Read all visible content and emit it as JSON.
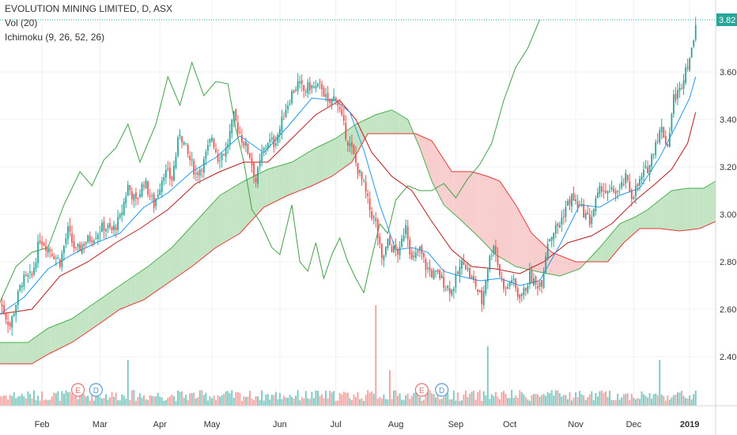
{
  "chart_data": {
    "type": "candlestick",
    "title": "EVOLUTION MINING LIMITED, D, ASX",
    "indicators": [
      "Vol (20)",
      "Ichimoku (9, 26, 52, 26)"
    ],
    "last_price_label": "3.82",
    "last_price": 3.82,
    "y_ticks": [
      "3.60",
      "3.40",
      "3.20",
      "3.00",
      "2.80",
      "2.60",
      "2.40"
    ],
    "ylim": [
      2.2,
      3.84
    ],
    "x_labels": [
      "Feb",
      "Mar",
      "Apr",
      "May",
      "Jun",
      "Jul",
      "Aug",
      "Sep",
      "Oct",
      "Nov",
      "Dec",
      "2019"
    ],
    "x_label_days": [
      21,
      50,
      80,
      106,
      140,
      168,
      198,
      228,
      255,
      288,
      317,
      345
    ],
    "x_range_days": [
      0,
      358
    ],
    "earnings_markers": [
      {
        "label": "E",
        "day": 39
      },
      {
        "label": "D",
        "day": 48
      },
      {
        "label": "E",
        "day": 211
      },
      {
        "label": "D",
        "day": 221
      }
    ],
    "colors": {
      "up": "#26a69a",
      "down": "#ef5350",
      "volume_up": "#80cbc4",
      "volume_down": "#f5a6a4",
      "tenkan": "#2196f3",
      "kijun": "#b71c1c",
      "lagging": "#43a047",
      "leading_a": "#4caf50",
      "leading_b": "#e53935",
      "cloud_up": "#b9dfb9",
      "cloud_down": "#f6c4c4",
      "last_price_bg": "#26a69a",
      "grid": "#eef0f3",
      "axis_text": "#333333"
    },
    "price_path": [
      [
        0,
        2.63
      ],
      [
        5,
        2.53
      ],
      [
        11,
        2.72
      ],
      [
        16,
        2.74
      ],
      [
        20,
        2.9
      ],
      [
        24,
        2.86
      ],
      [
        30,
        2.8
      ],
      [
        34,
        2.93
      ],
      [
        38,
        2.84
      ],
      [
        42,
        2.88
      ],
      [
        47,
        2.91
      ],
      [
        52,
        2.95
      ],
      [
        56,
        2.93
      ],
      [
        60,
        2.98
      ],
      [
        64,
        3.12
      ],
      [
        68,
        3.05
      ],
      [
        72,
        3.14
      ],
      [
        77,
        3.04
      ],
      [
        82,
        3.18
      ],
      [
        86,
        3.15
      ],
      [
        90,
        3.35
      ],
      [
        94,
        3.25
      ],
      [
        98,
        3.17
      ],
      [
        102,
        3.22
      ],
      [
        106,
        3.33
      ],
      [
        109,
        3.24
      ],
      [
        113,
        3.27
      ],
      [
        117,
        3.41
      ],
      [
        121,
        3.32
      ],
      [
        125,
        3.25
      ],
      [
        128,
        3.14
      ],
      [
        131,
        3.25
      ],
      [
        134,
        3.31
      ],
      [
        137,
        3.3
      ],
      [
        140,
        3.36
      ],
      [
        143,
        3.45
      ],
      [
        146,
        3.51
      ],
      [
        149,
        3.55
      ],
      [
        152,
        3.52
      ],
      [
        155,
        3.54
      ],
      [
        158,
        3.53
      ],
      [
        161,
        3.54
      ],
      [
        164,
        3.46
      ],
      [
        168,
        3.5
      ],
      [
        171,
        3.4
      ],
      [
        174,
        3.31
      ],
      [
        176,
        3.27
      ],
      [
        179,
        3.19
      ],
      [
        182,
        3.12
      ],
      [
        185,
        3.02
      ],
      [
        188,
        2.96
      ],
      [
        191,
        2.8
      ],
      [
        194,
        2.88
      ],
      [
        197,
        2.85
      ],
      [
        200,
        2.84
      ],
      [
        203,
        2.97
      ],
      [
        206,
        2.8
      ],
      [
        210,
        2.85
      ],
      [
        213,
        2.78
      ],
      [
        216,
        2.75
      ],
      [
        220,
        2.74
      ],
      [
        223,
        2.7
      ],
      [
        226,
        2.68
      ],
      [
        229,
        2.75
      ],
      [
        232,
        2.81
      ],
      [
        235,
        2.74
      ],
      [
        238,
        2.7
      ],
      [
        241,
        2.63
      ],
      [
        244,
        2.78
      ],
      [
        247,
        2.88
      ],
      [
        250,
        2.75
      ],
      [
        253,
        2.68
      ],
      [
        256,
        2.73
      ],
      [
        259,
        2.66
      ],
      [
        262,
        2.67
      ],
      [
        265,
        2.74
      ],
      [
        268,
        2.7
      ],
      [
        271,
        2.72
      ],
      [
        274,
        2.89
      ],
      [
        277,
        2.93
      ],
      [
        280,
        2.96
      ],
      [
        283,
        3.03
      ],
      [
        286,
        3.07
      ],
      [
        289,
        3.04
      ],
      [
        292,
        3.01
      ],
      [
        295,
        2.97
      ],
      [
        298,
        3.05
      ],
      [
        301,
        3.12
      ],
      [
        304,
        3.08
      ],
      [
        307,
        3.1
      ],
      [
        310,
        3.1
      ],
      [
        313,
        3.15
      ],
      [
        316,
        3.08
      ],
      [
        319,
        3.12
      ],
      [
        322,
        3.17
      ],
      [
        325,
        3.21
      ],
      [
        328,
        3.31
      ],
      [
        331,
        3.36
      ],
      [
        334,
        3.29
      ],
      [
        337,
        3.49
      ],
      [
        340,
        3.52
      ],
      [
        343,
        3.62
      ],
      [
        346,
        3.68
      ],
      [
        348,
        3.82
      ]
    ],
    "tenkan_sen": [
      [
        0,
        2.58
      ],
      [
        12,
        2.65
      ],
      [
        24,
        2.77
      ],
      [
        36,
        2.83
      ],
      [
        48,
        2.88
      ],
      [
        60,
        2.92
      ],
      [
        72,
        3.03
      ],
      [
        84,
        3.09
      ],
      [
        96,
        3.18
      ],
      [
        108,
        3.24
      ],
      [
        120,
        3.33
      ],
      [
        132,
        3.26
      ],
      [
        144,
        3.37
      ],
      [
        156,
        3.49
      ],
      [
        168,
        3.48
      ],
      [
        175,
        3.43
      ],
      [
        182,
        3.27
      ],
      [
        190,
        3.04
      ],
      [
        198,
        2.85
      ],
      [
        206,
        2.86
      ],
      [
        214,
        2.84
      ],
      [
        222,
        2.76
      ],
      [
        230,
        2.74
      ],
      [
        240,
        2.72
      ],
      [
        250,
        2.73
      ],
      [
        260,
        2.7
      ],
      [
        270,
        2.72
      ],
      [
        280,
        2.87
      ],
      [
        290,
        3.04
      ],
      [
        300,
        3.03
      ],
      [
        310,
        3.08
      ],
      [
        320,
        3.11
      ],
      [
        330,
        3.24
      ],
      [
        338,
        3.37
      ],
      [
        345,
        3.49
      ],
      [
        348,
        3.58
      ]
    ],
    "kijun_sen": [
      [
        0,
        2.58
      ],
      [
        16,
        2.6
      ],
      [
        30,
        2.74
      ],
      [
        44,
        2.8
      ],
      [
        58,
        2.88
      ],
      [
        70,
        2.94
      ],
      [
        84,
        3.02
      ],
      [
        98,
        3.13
      ],
      [
        110,
        3.18
      ],
      [
        122,
        3.22
      ],
      [
        134,
        3.22
      ],
      [
        146,
        3.32
      ],
      [
        158,
        3.42
      ],
      [
        170,
        3.48
      ],
      [
        178,
        3.4
      ],
      [
        186,
        3.26
      ],
      [
        196,
        3.16
      ],
      [
        206,
        3.1
      ],
      [
        216,
        2.97
      ],
      [
        226,
        2.85
      ],
      [
        236,
        2.78
      ],
      [
        248,
        2.77
      ],
      [
        260,
        2.75
      ],
      [
        272,
        2.8
      ],
      [
        284,
        2.88
      ],
      [
        296,
        2.91
      ],
      [
        306,
        2.96
      ],
      [
        318,
        3.06
      ],
      [
        328,
        3.13
      ],
      [
        336,
        3.19
      ],
      [
        344,
        3.3
      ],
      [
        348,
        3.43
      ]
    ],
    "chikou_span": [
      [
        0,
        2.63
      ],
      [
        8,
        2.78
      ],
      [
        16,
        2.84
      ],
      [
        24,
        2.86
      ],
      [
        32,
        3.04
      ],
      [
        40,
        3.18
      ],
      [
        46,
        3.12
      ],
      [
        52,
        3.23
      ],
      [
        58,
        3.28
      ],
      [
        64,
        3.38
      ],
      [
        70,
        3.22
      ],
      [
        78,
        3.38
      ],
      [
        84,
        3.58
      ],
      [
        90,
        3.46
      ],
      [
        96,
        3.64
      ],
      [
        102,
        3.5
      ],
      [
        108,
        3.56
      ],
      [
        114,
        3.55
      ],
      [
        118,
        3.36
      ],
      [
        122,
        3.22
      ],
      [
        126,
        3.02
      ],
      [
        130,
        2.97
      ],
      [
        136,
        2.86
      ],
      [
        140,
        2.83
      ],
      [
        146,
        3.04
      ],
      [
        150,
        2.8
      ],
      [
        154,
        2.76
      ],
      [
        158,
        2.88
      ],
      [
        162,
        2.73
      ],
      [
        166,
        2.83
      ],
      [
        170,
        2.9
      ],
      [
        174,
        2.8
      ],
      [
        178,
        2.73
      ],
      [
        182,
        2.67
      ],
      [
        186,
        2.82
      ],
      [
        190,
        2.96
      ],
      [
        194,
        2.92
      ],
      [
        198,
        3.06
      ],
      [
        204,
        3.12
      ],
      [
        210,
        3.1
      ],
      [
        216,
        3.1
      ],
      [
        222,
        3.13
      ],
      [
        228,
        3.07
      ],
      [
        234,
        3.15
      ],
      [
        240,
        3.21
      ],
      [
        246,
        3.3
      ],
      [
        252,
        3.48
      ],
      [
        258,
        3.62
      ],
      [
        264,
        3.7
      ],
      [
        270,
        3.82
      ]
    ],
    "senkou_span_a": [
      [
        0,
        2.46
      ],
      [
        14,
        2.46
      ],
      [
        24,
        2.52
      ],
      [
        36,
        2.56
      ],
      [
        48,
        2.63
      ],
      [
        60,
        2.7
      ],
      [
        74,
        2.78
      ],
      [
        86,
        2.86
      ],
      [
        98,
        2.97
      ],
      [
        110,
        3.08
      ],
      [
        122,
        3.14
      ],
      [
        134,
        3.19
      ],
      [
        146,
        3.22
      ],
      [
        158,
        3.28
      ],
      [
        168,
        3.32
      ],
      [
        178,
        3.38
      ],
      [
        188,
        3.42
      ],
      [
        196,
        3.44
      ],
      [
        204,
        3.4
      ],
      [
        210,
        3.28
      ],
      [
        216,
        3.14
      ],
      [
        222,
        3.04
      ],
      [
        230,
        2.98
      ],
      [
        240,
        2.9
      ],
      [
        248,
        2.83
      ],
      [
        258,
        2.78
      ],
      [
        268,
        2.76
      ],
      [
        280,
        2.74
      ],
      [
        290,
        2.77
      ],
      [
        300,
        2.86
      ],
      [
        310,
        2.96
      ],
      [
        318,
        2.99
      ],
      [
        324,
        3.02
      ],
      [
        330,
        3.06
      ],
      [
        336,
        3.1
      ],
      [
        344,
        3.11
      ],
      [
        352,
        3.11
      ],
      [
        358,
        3.14
      ]
    ],
    "senkou_span_b": [
      [
        0,
        2.37
      ],
      [
        16,
        2.37
      ],
      [
        24,
        2.41
      ],
      [
        36,
        2.46
      ],
      [
        50,
        2.54
      ],
      [
        60,
        2.6
      ],
      [
        72,
        2.64
      ],
      [
        84,
        2.71
      ],
      [
        96,
        2.78
      ],
      [
        108,
        2.86
      ],
      [
        120,
        2.92
      ],
      [
        132,
        3.03
      ],
      [
        144,
        3.08
      ],
      [
        156,
        3.12
      ],
      [
        166,
        3.16
      ],
      [
        176,
        3.22
      ],
      [
        184,
        3.34
      ],
      [
        196,
        3.34
      ],
      [
        208,
        3.34
      ],
      [
        216,
        3.31
      ],
      [
        226,
        3.18
      ],
      [
        236,
        3.18
      ],
      [
        244,
        3.16
      ],
      [
        250,
        3.14
      ],
      [
        258,
        3.04
      ],
      [
        266,
        2.92
      ],
      [
        276,
        2.84
      ],
      [
        288,
        2.8
      ],
      [
        296,
        2.8
      ],
      [
        304,
        2.8
      ],
      [
        312,
        2.88
      ],
      [
        320,
        2.94
      ],
      [
        330,
        2.94
      ],
      [
        340,
        2.93
      ],
      [
        350,
        2.94
      ],
      [
        358,
        2.97
      ]
    ]
  }
}
